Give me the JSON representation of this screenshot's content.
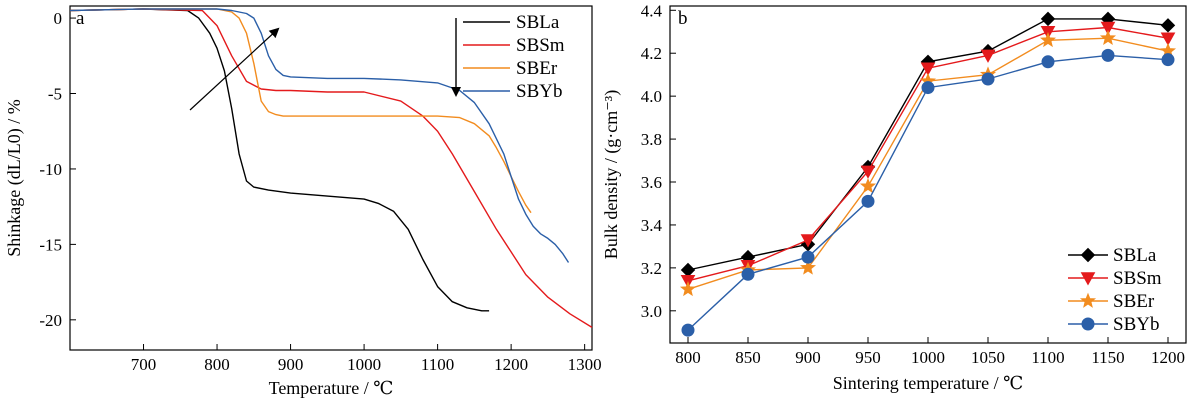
{
  "chart_data": [
    {
      "type": "line",
      "panel_label": "a",
      "xlabel": "Temperature / ℃",
      "ylabel": "Shinkage (dL/L0) / %",
      "xlim": [
        600,
        1310
      ],
      "ylim": [
        -22,
        0.8
      ],
      "x_ticks": [
        700,
        800,
        900,
        1000,
        1100,
        1200,
        1300
      ],
      "y_ticks": [
        0,
        -5,
        -10,
        -15,
        -20
      ],
      "legend_position": "top-right",
      "annotations": [
        "arrow-diagonal-up-right",
        "arrow-down"
      ],
      "series": [
        {
          "name": "SBLa",
          "color": "#000000",
          "x": [
            600,
            700,
            760,
            775,
            790,
            800,
            810,
            820,
            830,
            840,
            850,
            870,
            900,
            950,
            1000,
            1020,
            1040,
            1060,
            1080,
            1100,
            1120,
            1140,
            1150,
            1160,
            1170
          ],
          "y": [
            0.5,
            0.6,
            0.5,
            0.0,
            -1.0,
            -2.0,
            -3.5,
            -6.0,
            -9.0,
            -10.8,
            -11.2,
            -11.4,
            -11.6,
            -11.8,
            -12.0,
            -12.3,
            -12.8,
            -14.0,
            -16.0,
            -17.8,
            -18.8,
            -19.2,
            -19.3,
            -19.4,
            -19.4
          ]
        },
        {
          "name": "SBSm",
          "color": "#e41a1c",
          "x": [
            600,
            700,
            780,
            800,
            820,
            840,
            860,
            880,
            900,
            950,
            1000,
            1050,
            1080,
            1100,
            1120,
            1150,
            1180,
            1200,
            1220,
            1250,
            1280,
            1310
          ],
          "y": [
            0.5,
            0.6,
            0.5,
            -0.5,
            -2.5,
            -4.2,
            -4.7,
            -4.8,
            -4.8,
            -4.9,
            -4.9,
            -5.5,
            -6.5,
            -7.5,
            -9.0,
            -11.5,
            -14.0,
            -15.5,
            -17.0,
            -18.5,
            -19.6,
            -20.5
          ]
        },
        {
          "name": "SBEr",
          "color": "#f28c1f",
          "x": [
            600,
            700,
            800,
            820,
            830,
            840,
            850,
            860,
            870,
            880,
            890,
            900,
            950,
            1000,
            1050,
            1100,
            1130,
            1150,
            1170,
            1180,
            1190,
            1200,
            1210,
            1220,
            1227
          ],
          "y": [
            0.5,
            0.6,
            0.6,
            0.4,
            0.0,
            -1.0,
            -3.0,
            -5.5,
            -6.2,
            -6.4,
            -6.5,
            -6.5,
            -6.5,
            -6.5,
            -6.5,
            -6.5,
            -6.6,
            -7.0,
            -7.8,
            -8.6,
            -9.5,
            -10.5,
            -11.5,
            -12.4,
            -12.9
          ]
        },
        {
          "name": "SBYb",
          "color": "#2b5fa8",
          "x": [
            600,
            700,
            800,
            820,
            840,
            850,
            860,
            870,
            880,
            890,
            900,
            950,
            1000,
            1050,
            1100,
            1130,
            1150,
            1170,
            1190,
            1200,
            1210,
            1220,
            1230,
            1240,
            1250,
            1260,
            1270,
            1278
          ],
          "y": [
            0.5,
            0.6,
            0.6,
            0.5,
            0.3,
            0.0,
            -1.0,
            -2.5,
            -3.4,
            -3.8,
            -3.9,
            -4.0,
            -4.0,
            -4.1,
            -4.3,
            -4.8,
            -5.6,
            -7.0,
            -9.0,
            -10.5,
            -12.0,
            -13.0,
            -13.8,
            -14.3,
            -14.6,
            -15.0,
            -15.6,
            -16.2
          ]
        }
      ]
    },
    {
      "type": "line",
      "panel_label": "b",
      "xlabel": "Sintering temperature / ℃",
      "ylabel": "Bulk density / (g·cm⁻³)",
      "categories": [
        800,
        850,
        900,
        950,
        1000,
        1050,
        1100,
        1150,
        1200
      ],
      "xlim": [
        785,
        1215
      ],
      "ylim": [
        2.85,
        4.42
      ],
      "y_ticks": [
        3.0,
        3.2,
        3.4,
        3.6,
        3.8,
        4.0,
        4.2,
        4.4
      ],
      "legend_position": "bottom-right",
      "series": [
        {
          "name": "SBLa",
          "color": "#000000",
          "marker": "diamond",
          "values": [
            3.19,
            3.25,
            3.31,
            3.67,
            4.16,
            4.21,
            4.36,
            4.36,
            4.33
          ]
        },
        {
          "name": "SBSm",
          "color": "#e41a1c",
          "marker": "triangle-down",
          "values": [
            3.14,
            3.21,
            3.33,
            3.65,
            4.13,
            4.19,
            4.3,
            4.32,
            4.27
          ]
        },
        {
          "name": "SBEr",
          "color": "#f28c1f",
          "marker": "star",
          "values": [
            3.1,
            3.19,
            3.2,
            3.58,
            4.07,
            4.1,
            4.26,
            4.27,
            4.21
          ]
        },
        {
          "name": "SBYb",
          "color": "#2b5fa8",
          "marker": "circle",
          "values": [
            2.91,
            3.17,
            3.25,
            3.51,
            4.04,
            4.08,
            4.16,
            4.19,
            4.17
          ]
        }
      ]
    }
  ]
}
